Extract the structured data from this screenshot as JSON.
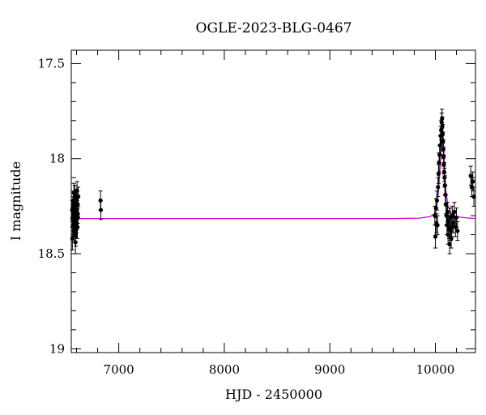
{
  "chart_data": {
    "type": "scatter",
    "title": "OGLE-2023-BLG-0467",
    "xlabel": "HJD - 2450000",
    "ylabel": "I magnitude",
    "xlim": [
      6550,
      10380
    ],
    "ylim": [
      19.02,
      17.43
    ],
    "y_inverted": true,
    "grid": false,
    "x_ticks": [
      7000,
      8000,
      9000,
      10000
    ],
    "x_tick_labels": [
      "7000",
      "8000",
      "9000",
      "10000"
    ],
    "y_ticks": [
      17.5,
      18,
      18.5,
      19
    ],
    "y_tick_labels": [
      "17.5",
      "18",
      "18.5",
      "19"
    ],
    "colors": {
      "points": "#000000",
      "model": "#cc00cc",
      "axes": "#000000"
    },
    "series": [
      {
        "kind": "points",
        "points": [
          [
            6558,
            18.27,
            0.05
          ],
          [
            6562,
            18.31,
            0.05
          ],
          [
            6565,
            18.25,
            0.05
          ],
          [
            6568,
            18.35,
            0.06
          ],
          [
            6571,
            18.22,
            0.05
          ],
          [
            6574,
            18.3,
            0.05
          ],
          [
            6577,
            18.38,
            0.06
          ],
          [
            6580,
            18.28,
            0.05
          ],
          [
            6583,
            18.19,
            0.05
          ],
          [
            6586,
            18.33,
            0.05
          ],
          [
            6589,
            18.26,
            0.05
          ],
          [
            6592,
            18.4,
            0.06
          ],
          [
            6595,
            18.29,
            0.05
          ],
          [
            6598,
            18.21,
            0.05
          ],
          [
            6601,
            18.34,
            0.05
          ],
          [
            6604,
            18.27,
            0.05
          ],
          [
            6607,
            18.36,
            0.06
          ],
          [
            6610,
            18.24,
            0.05
          ],
          [
            6613,
            18.31,
            0.05
          ],
          [
            6616,
            18.2,
            0.05
          ],
          [
            6560,
            18.42,
            0.06
          ],
          [
            6575,
            18.18,
            0.05
          ],
          [
            6590,
            18.44,
            0.06
          ],
          [
            6605,
            18.17,
            0.05
          ],
          [
            6570,
            18.33,
            0.05
          ],
          [
            6585,
            18.24,
            0.05
          ],
          [
            6600,
            18.37,
            0.05
          ],
          [
            6612,
            18.29,
            0.05
          ],
          [
            6827,
            18.22,
            0.05
          ],
          [
            6830,
            18.27,
            0.05
          ],
          [
            9995,
            18.3,
            0.05
          ],
          [
            10000,
            18.41,
            0.06
          ],
          [
            10005,
            18.26,
            0.05
          ],
          [
            10010,
            18.34,
            0.05
          ],
          [
            10015,
            18.22,
            0.05
          ],
          [
            10020,
            18.35,
            0.05
          ],
          [
            10025,
            18.15,
            0.05
          ],
          [
            10030,
            18.08,
            0.05
          ],
          [
            10035,
            18.02,
            0.05
          ],
          [
            10040,
            17.98,
            0.05
          ],
          [
            10045,
            17.93,
            0.05
          ],
          [
            10050,
            17.88,
            0.05
          ],
          [
            10055,
            17.85,
            0.05
          ],
          [
            10060,
            17.81,
            0.05
          ],
          [
            10063,
            17.79,
            0.05
          ],
          [
            10066,
            17.83,
            0.05
          ],
          [
            10069,
            17.87,
            0.05
          ],
          [
            10072,
            17.91,
            0.05
          ],
          [
            10075,
            17.95,
            0.05
          ],
          [
            10078,
            17.99,
            0.05
          ],
          [
            10081,
            18.03,
            0.05
          ],
          [
            10084,
            18.07,
            0.05
          ],
          [
            10087,
            18.1,
            0.05
          ],
          [
            10090,
            18.14,
            0.05
          ],
          [
            10095,
            18.19,
            0.05
          ],
          [
            10100,
            18.24,
            0.05
          ],
          [
            10105,
            18.3,
            0.05
          ],
          [
            10110,
            18.35,
            0.05
          ],
          [
            10115,
            18.28,
            0.05
          ],
          [
            10120,
            18.4,
            0.05
          ],
          [
            10125,
            18.33,
            0.05
          ],
          [
            10130,
            18.37,
            0.05
          ],
          [
            10135,
            18.45,
            0.05
          ],
          [
            10140,
            18.31,
            0.05
          ],
          [
            10145,
            18.38,
            0.05
          ],
          [
            10150,
            18.42,
            0.05
          ],
          [
            10155,
            18.36,
            0.05
          ],
          [
            10160,
            18.3,
            0.05
          ],
          [
            10170,
            18.34,
            0.05
          ],
          [
            10180,
            18.28,
            0.05
          ],
          [
            10190,
            18.36,
            0.05
          ],
          [
            10200,
            18.31,
            0.05
          ],
          [
            10210,
            18.38,
            0.05
          ],
          [
            10335,
            18.09,
            0.05
          ],
          [
            10345,
            18.15,
            0.05
          ],
          [
            10355,
            18.12,
            0.05
          ],
          [
            10365,
            18.2,
            0.05
          ]
        ]
      },
      {
        "kind": "model",
        "points": [
          [
            6550,
            18.315
          ],
          [
            9600,
            18.315
          ],
          [
            9850,
            18.313
          ],
          [
            9950,
            18.305
          ],
          [
            9990,
            18.29
          ],
          [
            10010,
            18.25
          ],
          [
            10030,
            18.17
          ],
          [
            10045,
            18.05
          ],
          [
            10055,
            17.94
          ],
          [
            10062,
            17.83
          ],
          [
            10066,
            17.79
          ],
          [
            10070,
            17.83
          ],
          [
            10078,
            17.94
          ],
          [
            10088,
            18.07
          ],
          [
            10100,
            18.17
          ],
          [
            10120,
            18.25
          ],
          [
            10150,
            18.29
          ],
          [
            10200,
            18.305
          ],
          [
            10300,
            18.312
          ],
          [
            10380,
            18.315
          ]
        ]
      }
    ]
  }
}
